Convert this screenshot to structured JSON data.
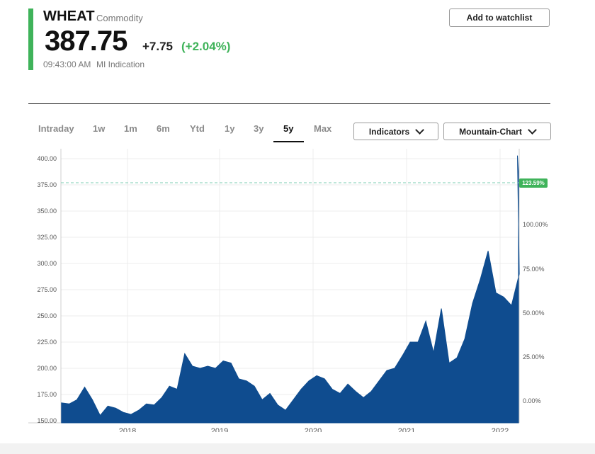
{
  "header": {
    "symbol": "WHEAT",
    "asset_type": "Commodity",
    "price": "387.75",
    "change": "+7.75",
    "change_pct": "(+2.04%)",
    "time": "09:43:00 AM",
    "indication": "MI Indication",
    "watchlist_label": "Add to watchlist"
  },
  "colors": {
    "accent_green": "#3fb35a",
    "chart_fill": "#0f4c8f",
    "reference_line": "#7ecdb3"
  },
  "ranges": [
    {
      "label": "Intraday",
      "active": false
    },
    {
      "label": "1w",
      "active": false
    },
    {
      "label": "1m",
      "active": false
    },
    {
      "label": "6m",
      "active": false
    },
    {
      "label": "Ytd",
      "active": false
    },
    {
      "label": "1y",
      "active": false
    },
    {
      "label": "3y",
      "active": false
    },
    {
      "label": "5y",
      "active": true
    },
    {
      "label": "Max",
      "active": false
    }
  ],
  "controls": {
    "indicators_label": "Indicators",
    "chart_type_label": "Mountain-Chart"
  },
  "chart_data": {
    "type": "area",
    "title": "",
    "xlabel": "",
    "ylabel": "",
    "ylim": [
      150,
      405
    ],
    "y_ticks": [
      "400.00",
      "375.00",
      "350.00",
      "325.00",
      "300.00",
      "275.00",
      "250.00",
      "225.00",
      "200.00",
      "175.00",
      "150.00"
    ],
    "y2_ticks": [
      "100.00%",
      "75.00%",
      "50.00%",
      "25.00%",
      "0.00%"
    ],
    "x_ticks": [
      "2018",
      "2019",
      "2020",
      "2021",
      "2022"
    ],
    "reference_value": 377,
    "reference_label": "123.59%",
    "grid": true,
    "series": [
      {
        "x": [
          "2017-04",
          "2017-05",
          "2017-06",
          "2017-07",
          "2017-08",
          "2017-09",
          "2017-10",
          "2017-11",
          "2017-12",
          "2018-01",
          "2018-02",
          "2018-03",
          "2018-04",
          "2018-05",
          "2018-06",
          "2018-07",
          "2018-08",
          "2018-09",
          "2018-10",
          "2018-11",
          "2018-12",
          "2019-01",
          "2019-02",
          "2019-03",
          "2019-04",
          "2019-05",
          "2019-06",
          "2019-07",
          "2019-08",
          "2019-09",
          "2019-10",
          "2019-11",
          "2019-12",
          "2020-01",
          "2020-02",
          "2020-03",
          "2020-04",
          "2020-05",
          "2020-06",
          "2020-07",
          "2020-08",
          "2020-09",
          "2020-10",
          "2020-11",
          "2020-12",
          "2021-01",
          "2021-02",
          "2021-03",
          "2021-04",
          "2021-05",
          "2021-06",
          "2021-07",
          "2021-08",
          "2021-09",
          "2021-10",
          "2021-11",
          "2021-12",
          "2022-01",
          "2022-02",
          "2022-03",
          "2022-03-08",
          "2022-03-12",
          "2022-03-18"
        ],
        "values": [
          167,
          166,
          170,
          182,
          170,
          155,
          164,
          162,
          158,
          156,
          160,
          166,
          165,
          172,
          183,
          180,
          214,
          202,
          200,
          202,
          200,
          207,
          205,
          190,
          188,
          183,
          170,
          176,
          165,
          160,
          170,
          180,
          188,
          193,
          190,
          180,
          176,
          185,
          178,
          172,
          178,
          188,
          198,
          200,
          212,
          225,
          225,
          245,
          215,
          257,
          205,
          210,
          228,
          262,
          285,
          312,
          272,
          268,
          260,
          290,
          403,
          388,
          380
        ]
      }
    ]
  }
}
